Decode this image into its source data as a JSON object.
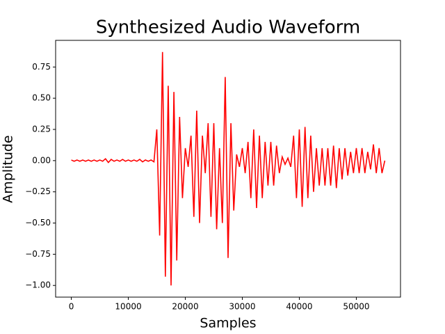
{
  "chart_data": {
    "type": "line",
    "title": "Synthesized Audio Waveform",
    "xlabel": "Samples",
    "ylabel": "Amplitude",
    "xlim": [
      -2750,
      57750
    ],
    "ylim": [
      -1.0935,
      0.9635
    ],
    "xticks": [
      0,
      10000,
      20000,
      30000,
      40000,
      50000
    ],
    "yticks": [
      {
        "value": -1.0,
        "label": "−1.00"
      },
      {
        "value": -0.75,
        "label": "−0.75"
      },
      {
        "value": -0.5,
        "label": "−0.50"
      },
      {
        "value": -0.25,
        "label": "−0.25"
      },
      {
        "value": 0,
        "label": "0.00"
      },
      0.25,
      {
        "value": 0.5,
        "label": "0.50"
      },
      0.75
    ],
    "grid": false,
    "series": [
      {
        "color": "#ff0000",
        "x": [
          0,
          500,
          1000,
          1500,
          2000,
          2500,
          3000,
          3500,
          4000,
          4500,
          5000,
          5500,
          6000,
          6500,
          7000,
          7500,
          8000,
          8500,
          9000,
          9500,
          10000,
          10500,
          11000,
          11500,
          12000,
          12500,
          13000,
          13500,
          14000,
          14500,
          15000,
          15500,
          16000,
          16500,
          17000,
          17500,
          18000,
          18500,
          19000,
          19500,
          20000,
          20500,
          21000,
          21500,
          22000,
          22500,
          23000,
          23500,
          24000,
          24500,
          25000,
          25500,
          26000,
          26500,
          27000,
          27500,
          28000,
          28500,
          29000,
          29500,
          30000,
          30500,
          31000,
          31500,
          32000,
          32500,
          33000,
          33500,
          34000,
          34500,
          35000,
          35500,
          36000,
          36500,
          37000,
          37500,
          38000,
          38500,
          39000,
          39500,
          40000,
          40500,
          41000,
          41500,
          42000,
          42500,
          43000,
          43500,
          44000,
          44500,
          45000,
          45500,
          46000,
          46500,
          47000,
          47500,
          48000,
          48500,
          49000,
          49500,
          50000,
          50500,
          51000,
          51500,
          52000,
          52500,
          53000,
          53500,
          54000,
          54500,
          55000
        ],
        "values": [
          0.005,
          -0.005,
          0.005,
          -0.005,
          0.005,
          -0.005,
          0.005,
          -0.005,
          0.005,
          -0.005,
          0.005,
          -0.005,
          0.015,
          -0.015,
          0.01,
          -0.005,
          0.005,
          -0.005,
          0.01,
          -0.005,
          0.005,
          -0.005,
          0.005,
          -0.005,
          0.01,
          -0.01,
          0.005,
          -0.005,
          0.005,
          -0.01,
          0.25,
          -0.6,
          0.87,
          -0.93,
          0.6,
          -1.0,
          0.55,
          -0.8,
          0.35,
          -0.3,
          0.1,
          -0.05,
          0.2,
          -0.45,
          0.4,
          -0.5,
          0.2,
          -0.1,
          0.3,
          -0.45,
          0.3,
          -0.55,
          0.1,
          -0.5,
          0.67,
          -0.78,
          0.3,
          -0.4,
          0.05,
          -0.05,
          0.1,
          -0.1,
          0.15,
          -0.3,
          0.25,
          -0.38,
          0.2,
          -0.3,
          0.15,
          -0.2,
          0.15,
          -0.2,
          0.12,
          -0.1,
          0.03,
          -0.03,
          0.02,
          -0.05,
          0.2,
          -0.3,
          0.25,
          -0.37,
          0.27,
          -0.3,
          0.2,
          -0.25,
          0.1,
          -0.2,
          0.1,
          -0.2,
          0.1,
          -0.2,
          0.12,
          -0.22,
          0.1,
          -0.15,
          0.1,
          -0.12,
          0.07,
          -0.1,
          0.1,
          -0.1,
          0.1,
          -0.1,
          0.07,
          -0.07,
          0.13,
          -0.1,
          0.1,
          -0.1,
          0
        ]
      }
    ]
  }
}
